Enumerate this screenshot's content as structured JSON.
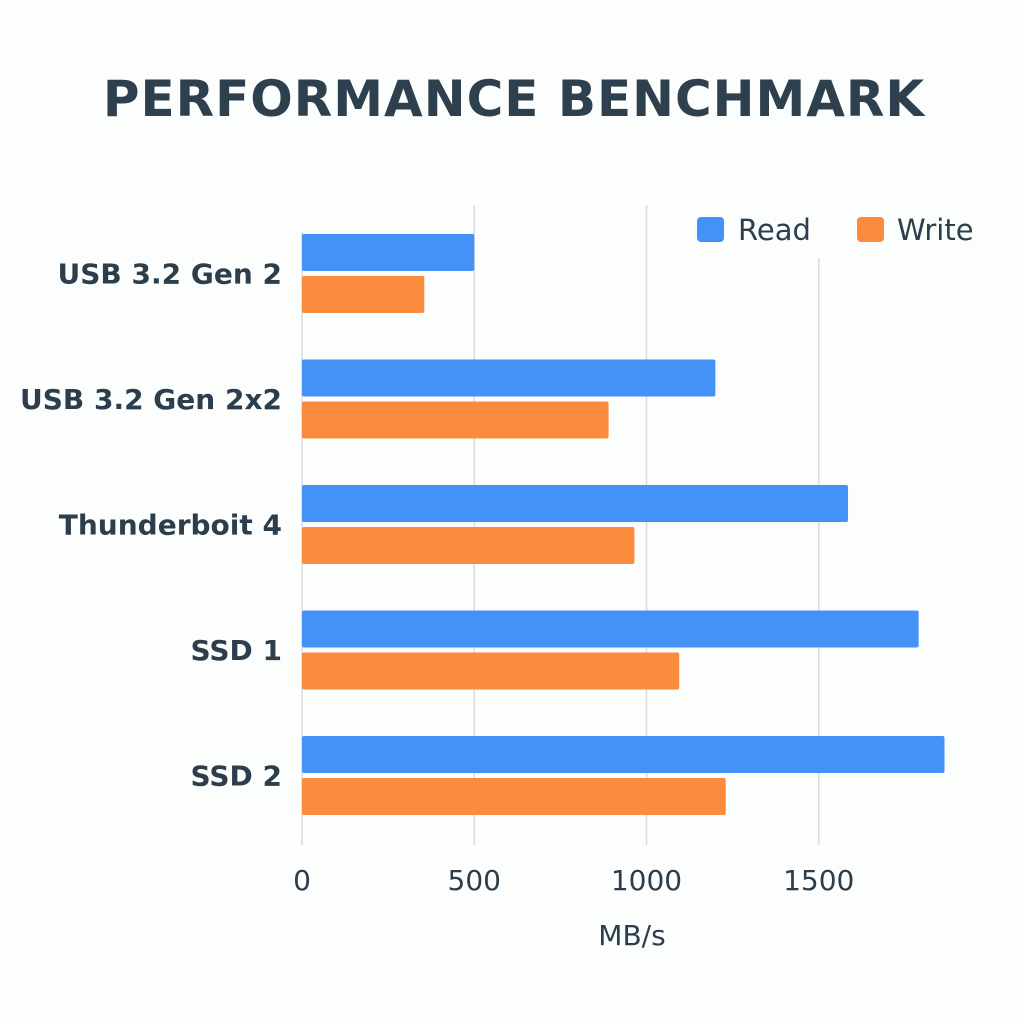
{
  "chart_data": {
    "type": "bar",
    "orientation": "horizontal",
    "title": "PERFORMANCE BENCHMARK",
    "xlabel": "MB/s",
    "ylabel": "",
    "categories": [
      "USB 3.2 Gen 2",
      "USB 3.2 Gen 2x2",
      "Thunderboit 4",
      "SSD 1",
      "SSD 2"
    ],
    "series": [
      {
        "name": "Read",
        "color": "#4492f6",
        "values": [
          500,
          1200,
          1585,
          1790,
          1865
        ]
      },
      {
        "name": "Write",
        "color": "#fb8c3d",
        "values": [
          355,
          890,
          965,
          1095,
          1230
        ]
      }
    ],
    "xlim": [
      0,
      1800
    ],
    "xticks": [
      0,
      500,
      1000,
      1500
    ],
    "xtick_labels": [
      "0",
      "500",
      "1000",
      "1500"
    ],
    "grid": "vertical",
    "legend_position": "top-right"
  }
}
